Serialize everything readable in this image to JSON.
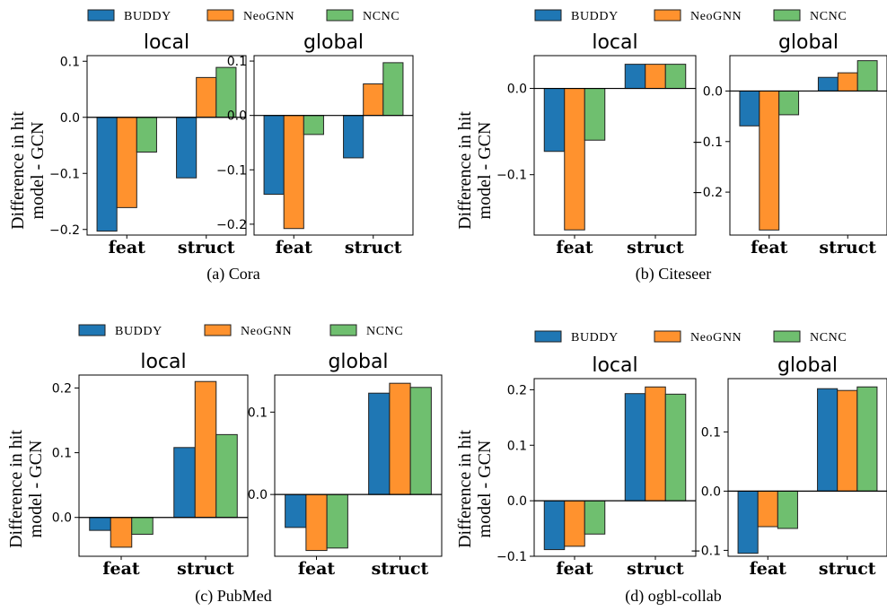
{
  "chart_data": [
    {
      "type": "bar",
      "caption": "(a) Cora",
      "ylabel": "Difference in hit\nmodel - GCN",
      "legend": [
        "BUDDY",
        "NeoGNN",
        "NCNC"
      ],
      "categories": [
        "feat",
        "struct"
      ],
      "panels": [
        {
          "title": "local",
          "ylim": [
            -0.21,
            0.11
          ],
          "yticks": [
            0.1,
            0.0,
            -0.1,
            -0.2
          ],
          "ytick_labels": [
            "0.1",
            "0.0",
            "−0.1",
            "−0.2"
          ],
          "series": [
            {
              "name": "BUDDY",
              "values": [
                -0.203,
                -0.108
              ]
            },
            {
              "name": "NeoGNN",
              "values": [
                -0.161,
                0.071
              ]
            },
            {
              "name": "NCNC",
              "values": [
                -0.062,
                0.089
              ]
            }
          ]
        },
        {
          "title": "global",
          "ylim": [
            -0.22,
            0.11
          ],
          "yticks": [
            0.1,
            0.0,
            -0.1,
            -0.2
          ],
          "ytick_labels": [
            "0.1",
            "0.0",
            "−0.1",
            "−0.2"
          ],
          "series": [
            {
              "name": "BUDDY",
              "values": [
                -0.145,
                -0.078
              ]
            },
            {
              "name": "NeoGNN",
              "values": [
                -0.208,
                0.058
              ]
            },
            {
              "name": "NCNC",
              "values": [
                -0.035,
                0.097
              ]
            }
          ]
        }
      ]
    },
    {
      "type": "bar",
      "caption": "(b) Citeseer",
      "ylabel": "Difference in hit\nmodel - GCN",
      "legend": [
        "BUDDY",
        "NeoGNN",
        "NCNC"
      ],
      "categories": [
        "feat",
        "struct"
      ],
      "panels": [
        {
          "title": "local",
          "ylim": [
            -0.17,
            0.038
          ],
          "yticks": [
            0.0,
            -0.1
          ],
          "ytick_labels": [
            "0.0",
            "−0.1"
          ],
          "series": [
            {
              "name": "BUDDY",
              "values": [
                -0.073,
                0.028
              ]
            },
            {
              "name": "NeoGNN",
              "values": [
                -0.164,
                0.028
              ]
            },
            {
              "name": "NCNC",
              "values": [
                -0.06,
                0.028
              ]
            }
          ]
        },
        {
          "title": "global",
          "ylim": [
            -0.285,
            0.07
          ],
          "yticks": [
            0.0,
            -0.1,
            -0.2
          ],
          "ytick_labels": [
            "0.0",
            "−0.1",
            "−0.2"
          ],
          "series": [
            {
              "name": "BUDDY",
              "values": [
                -0.069,
                0.027
              ]
            },
            {
              "name": "NeoGNN",
              "values": [
                -0.275,
                0.036
              ]
            },
            {
              "name": "NCNC",
              "values": [
                -0.047,
                0.06
              ]
            }
          ]
        }
      ]
    },
    {
      "type": "bar",
      "caption": "(c) PubMed",
      "ylabel": "Difference in hit\nmodel - GCN",
      "legend": [
        "BUDDY",
        "NeoGNN",
        "NCNC"
      ],
      "categories": [
        "feat",
        "struct"
      ],
      "panels": [
        {
          "title": "local",
          "ylim": [
            -0.06,
            0.22
          ],
          "yticks": [
            0.2,
            0.1,
            0.0
          ],
          "ytick_labels": [
            "0.2",
            "0.1",
            "0.0"
          ],
          "series": [
            {
              "name": "BUDDY",
              "values": [
                -0.02,
                0.108
              ]
            },
            {
              "name": "NeoGNN",
              "values": [
                -0.046,
                0.21
              ]
            },
            {
              "name": "NCNC",
              "values": [
                -0.026,
                0.128
              ]
            }
          ]
        },
        {
          "title": "global",
          "ylim": [
            -0.075,
            0.145
          ],
          "yticks": [
            0.1,
            0.0
          ],
          "ytick_labels": [
            "0.1",
            "0.0"
          ],
          "series": [
            {
              "name": "BUDDY",
              "values": [
                -0.04,
                0.123
              ]
            },
            {
              "name": "NeoGNN",
              "values": [
                -0.068,
                0.135
              ]
            },
            {
              "name": "NCNC",
              "values": [
                -0.065,
                0.13
              ]
            }
          ]
        }
      ]
    },
    {
      "type": "bar",
      "caption": "(d) ogbl-collab",
      "ylabel": "Difference in hit\nmodel - GCN",
      "legend": [
        "BUDDY",
        "NeoGNN",
        "NCNC"
      ],
      "categories": [
        "feat",
        "struct"
      ],
      "panels": [
        {
          "title": "local",
          "ylim": [
            -0.1,
            0.22
          ],
          "yticks": [
            0.2,
            0.1,
            0.0,
            -0.1
          ],
          "ytick_labels": [
            "0.2",
            "0.1",
            "0.0",
            "−0.1"
          ],
          "series": [
            {
              "name": "BUDDY",
              "values": [
                -0.088,
                0.193
              ]
            },
            {
              "name": "NeoGNN",
              "values": [
                -0.082,
                0.205
              ]
            },
            {
              "name": "NCNC",
              "values": [
                -0.06,
                0.192
              ]
            }
          ]
        },
        {
          "title": "global",
          "ylim": [
            -0.11,
            0.19
          ],
          "yticks": [
            0.1,
            0.0,
            -0.1
          ],
          "ytick_labels": [
            "0.1",
            "0.0",
            "−0.1"
          ],
          "series": [
            {
              "name": "BUDDY",
              "values": [
                -0.105,
                0.173
              ]
            },
            {
              "name": "NeoGNN",
              "values": [
                -0.06,
                0.17
              ]
            },
            {
              "name": "NCNC",
              "values": [
                -0.063,
                0.176
              ]
            }
          ]
        }
      ]
    }
  ],
  "colors": {
    "BUDDY": "#1f77b4",
    "NeoGNN": "#ff922e",
    "NCNC": "#6fbf6f"
  }
}
